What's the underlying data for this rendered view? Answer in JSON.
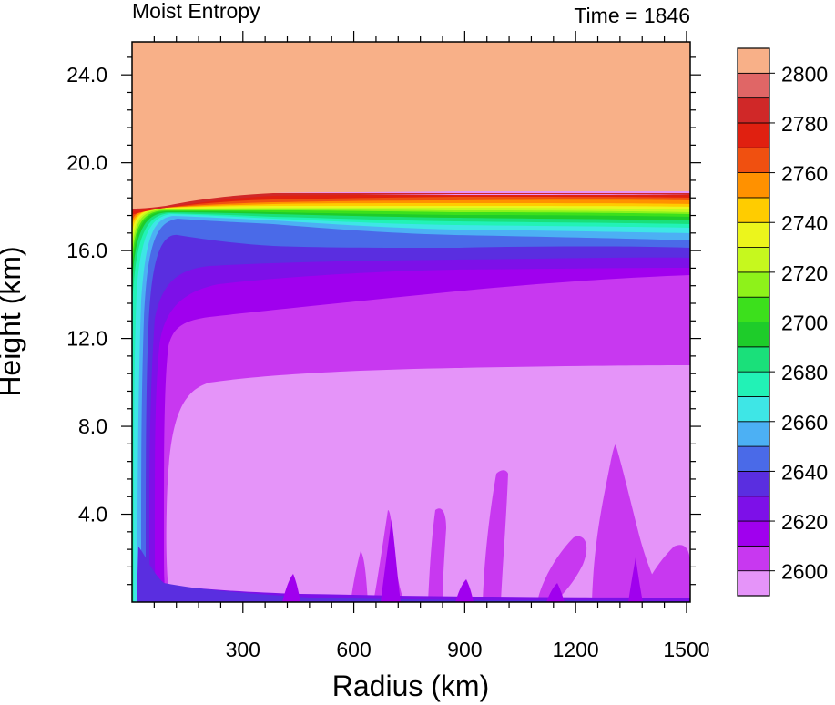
{
  "chart_data": {
    "type": "heatmap",
    "title": "Moist Entropy",
    "time_label": "Time = 1846",
    "xlabel": "Radius (km)",
    "ylabel": "Height (km)",
    "xlim": [
      0,
      1510
    ],
    "ylim": [
      0,
      25.5
    ],
    "xticks": [
      300,
      600,
      900,
      1200,
      1500
    ],
    "xtick_labels": [
      "300",
      "600",
      "900",
      "1200",
      "1500"
    ],
    "yticks": [
      4,
      8,
      12,
      16,
      20,
      24
    ],
    "ytick_labels": [
      "4.0",
      "8.0",
      "12.0",
      "16.0",
      "20.0",
      "24.0"
    ],
    "colorbar": {
      "levels": [
        2600,
        2610,
        2620,
        2630,
        2640,
        2650,
        2660,
        2670,
        2680,
        2690,
        2700,
        2710,
        2720,
        2730,
        2740,
        2750,
        2760,
        2770,
        2780,
        2790,
        2800
      ],
      "tick_labels": [
        "2600",
        "2620",
        "2640",
        "2660",
        "2680",
        "2700",
        "2720",
        "2740",
        "2760",
        "2780",
        "2800"
      ],
      "colors": [
        "#e594f9",
        "#c838f0",
        "#a000ee",
        "#7d10e8",
        "#5a2ee0",
        "#4a6ae8",
        "#4cb0f4",
        "#3ee6e6",
        "#22f2b6",
        "#1ae07a",
        "#1ecc2a",
        "#3ce01c",
        "#8ef21a",
        "#c6f81e",
        "#ecf51c",
        "#ffcc00",
        "#ff9100",
        "#f05010",
        "#e02010",
        "#d02828",
        "#e06666",
        "#f8b088"
      ],
      "extend": "both"
    },
    "fields": {
      "stratosphere_above_km": 18.5,
      "outflow_top_km": 18.5,
      "outflow_bottom_km": 16.3,
      "mid_level_min_value": 2600,
      "boundary_layer_value_range": [
        2610,
        2650
      ],
      "eyewall_radius_km": 20
    }
  }
}
